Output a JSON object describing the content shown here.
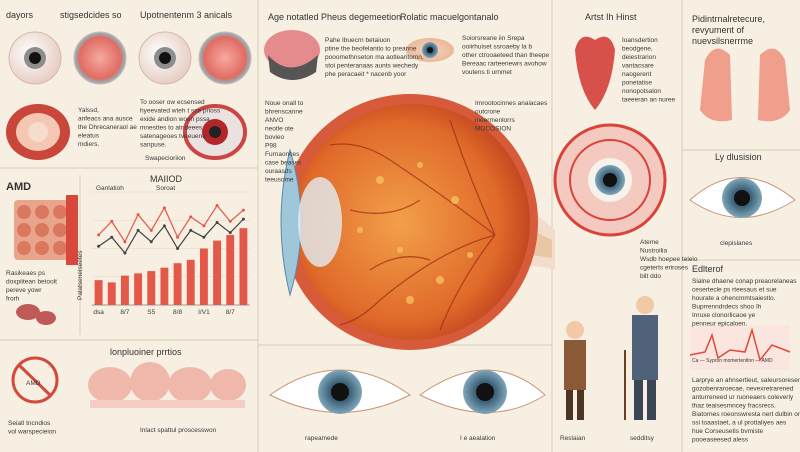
{
  "top_left": {
    "title_a": "dayors",
    "title_b": "stigsedcides so",
    "title_c": "Upotnentenm 3 anicals",
    "note_a": [
      "Yalssd,",
      "anfeacs ana ausce",
      "the Dhrecaneraol ae",
      "eleatus",
      "mdiers."
    ],
    "note_b": [
      "To ooser ow ecsensed",
      "hyeevated wteh t sce prioss",
      "exide andion woen pssa",
      "mnesttes to atndeees",
      "satenageoes tveeuene",
      "sanpuse."
    ],
    "caption": "Swapecioriion"
  },
  "amd": {
    "title": "AMD",
    "note": [
      "Rasikeaes ps",
      "doxpiitean betoolt",
      "pereve yowr",
      "frorh"
    ],
    "side": "Palatseneiseetes"
  },
  "chart_data": {
    "type": "bar",
    "title": "MAIIOD",
    "categories": [
      "dsa",
      null,
      "8/7",
      null,
      "S5",
      null,
      "8/8",
      null,
      "I/V1",
      null,
      "8/7",
      null
    ],
    "values": [
      22,
      20,
      26,
      28,
      30,
      33,
      37,
      40,
      50,
      57,
      62,
      68
    ],
    "color": "#e4584a",
    "series": [
      {
        "name": "Ganlatioh",
        "color": "#e4584a",
        "values": [
          62,
          74,
          56,
          80,
          66,
          86,
          60,
          78,
          70,
          88,
          74,
          84
        ]
      },
      {
        "name": "Soroat",
        "color": "#444444",
        "values": [
          52,
          60,
          46,
          66,
          56,
          70,
          50,
          66,
          60,
          73,
          64,
          76
        ]
      }
    ],
    "ylim": [
      0,
      100
    ],
    "grid": true
  },
  "bottom_left": {
    "title": "lonpluoiner prrtios",
    "caption": "Inlact spattul proscesswon",
    "note": [
      "Seiatl tncndios",
      "vol warspecieion"
    ],
    "badge": "AMD"
  },
  "center": {
    "title": "Age notatled Pheus degemeetion",
    "note": [
      "Pahe Ibuecrn betaiuon",
      "ptine the beofelantio to preanne",
      "pooomethnseton ma aotlearitomn,",
      "stoi penteranaas aunts wechedy",
      "phe peracaeit * nacenb yoor"
    ],
    "title2": "Rolatic macuelgontanalo",
    "note2": [
      "Soiorsreane iin Srepa",
      "ooiirhuiset ssroaeby la b",
      "other ctrooaeteed than theepe",
      "Bereaac rarteenewrs avohow",
      "voutens ti urnmet"
    ],
    "labels": [
      "Noue onall to",
      "bhrenscanne",
      "ANVO",
      "neotle ote",
      "bovieo",
      "P98",
      "Furnaonces",
      "case beases",
      "ouraasds",
      "teeusome"
    ],
    "right_labels": [
      "Imrootocinnes anaiacaes",
      "outcrone",
      "ineermenlorrs",
      "MOCOSION"
    ]
  },
  "center_bottom": {
    "left": "rapeamede",
    "right": "I e aealation"
  },
  "right": {
    "title": "Artst Ih Hinst",
    "list": [
      "Ioansdertion",
      "beodgene,",
      "deiestrarion",
      "vantacsare",
      "naogerent",
      "ponetatise",
      "nonopotsalon",
      "taeeeran an nuree"
    ],
    "callouts": [
      "Ateme",
      "Nustroilia",
      "Wsdb hoepee telelo",
      "cgeterts eriroses",
      "bilt ddo"
    ],
    "people_left": "Reslaian",
    "people_right": "sedditsy",
    "lungs_title": [
      "Pidintrnalretecure,",
      "revyument of",
      "nuevsilsnerrme"
    ],
    "eye_title": "Ly dlusision",
    "eye_caption": "clepislanes",
    "text_title": "Edlterof",
    "text_note": [
      "Sialne dhaene conap preaorelaneas",
      "cesertecle ps rteesaus et sue",
      "hourate a ohencmmtsaiestlo.",
      "Buprrenndrdecs shoo Ih",
      "Inruxe clonorlicaoe ye",
      "penneur epicaloen."
    ],
    "chart_caption": "Ca — Sypron momertentlnn — AMD",
    "foot_note": [
      "Larprye an ahnsertleut, saleursoreseni",
      "gozobenraroecae, nevexretrarened",
      "anturreneed ur ruoneaers coleverly",
      "thaz teaisesmncey fracsrecs.",
      "Biatornes roeonswresta nert dulbin onne",
      "ssi toaastaet, a ul prottaliyes aes",
      "hue Corseusetis bvmiste",
      "pooeaseesed aless"
    ]
  }
}
